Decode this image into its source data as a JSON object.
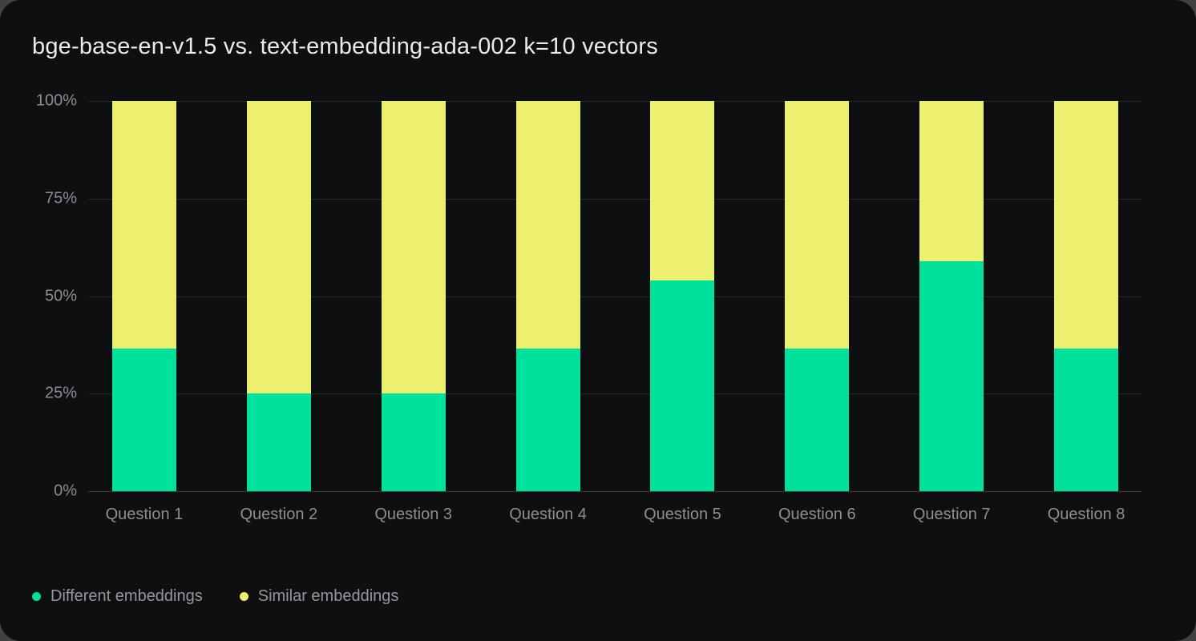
{
  "card": {
    "outer_background": "#3f4143",
    "background": "#0e0f10"
  },
  "title": {
    "text": "bge-base-en-v1.5 vs. text-embedding-ada-002 k=10 vectors",
    "color": "#e8eaed"
  },
  "axes": {
    "y_ticks": [
      "0%",
      "25%",
      "50%",
      "75%",
      "100%"
    ],
    "tick_color": "#8b8e95",
    "gridline_color": "#25272a",
    "baseline_color": "#3b3d41"
  },
  "legend": {
    "position": "bottom-left",
    "items": [
      {
        "label": "Different embeddings",
        "color": "#00e19c"
      },
      {
        "label": "Similar embeddings",
        "color": "#edf06f"
      }
    ]
  },
  "chart_data": {
    "type": "bar",
    "stacked": true,
    "percent_stacked": true,
    "title": "bge-base-en-v1.5 vs. text-embedding-ada-002 k=10 vectors",
    "categories": [
      "Question 1",
      "Question 2",
      "Question 3",
      "Question 4",
      "Question 5",
      "Question 6",
      "Question 7",
      "Question 8"
    ],
    "series": [
      {
        "name": "Different embeddings",
        "color": "#00e19c",
        "values": [
          36.6,
          25.0,
          25.0,
          36.6,
          54.1,
          36.6,
          59.0,
          36.6
        ]
      },
      {
        "name": "Similar embeddings",
        "color": "#edf06f",
        "values": [
          63.4,
          75.0,
          75.0,
          63.4,
          45.9,
          63.4,
          41.0,
          63.4
        ]
      }
    ],
    "xlabel": "",
    "ylabel": "",
    "ylim": [
      0,
      100
    ],
    "grid": true,
    "legend_position": "bottom-left"
  }
}
